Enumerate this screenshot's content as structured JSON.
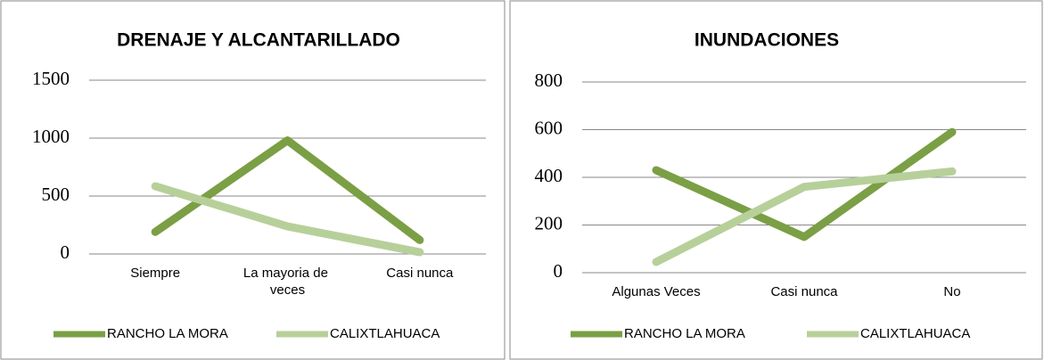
{
  "chart_data": [
    {
      "type": "line",
      "title": "DRENAJE Y ALCANTARILLADO",
      "categories": [
        "Siempre",
        "La mayoria de veces",
        "Casi nunca"
      ],
      "series": [
        {
          "name": "RANCHO LA MORA",
          "color": "#7b9f45",
          "values": [
            190,
            980,
            120
          ]
        },
        {
          "name": "CALIXTLAHUACA",
          "color": "#b7d09a",
          "values": [
            585,
            238,
            15
          ]
        }
      ],
      "ylim": [
        0,
        1500
      ],
      "yticks": [
        0,
        500,
        1000,
        1500
      ],
      "grid": true,
      "legend": "bottom"
    },
    {
      "type": "line",
      "title": "INUNDACIONES",
      "categories": [
        "Algunas Veces",
        "Casi nunca",
        "No"
      ],
      "series": [
        {
          "name": "RANCHO LA MORA",
          "color": "#7b9f45",
          "values": [
            430,
            150,
            590
          ]
        },
        {
          "name": "CALIXTLAHUACA",
          "color": "#b7d09a",
          "values": [
            45,
            360,
            425
          ]
        }
      ],
      "ylim": [
        0,
        800
      ],
      "yticks": [
        0,
        200,
        400,
        600,
        800
      ],
      "grid": true,
      "legend": "bottom"
    }
  ]
}
